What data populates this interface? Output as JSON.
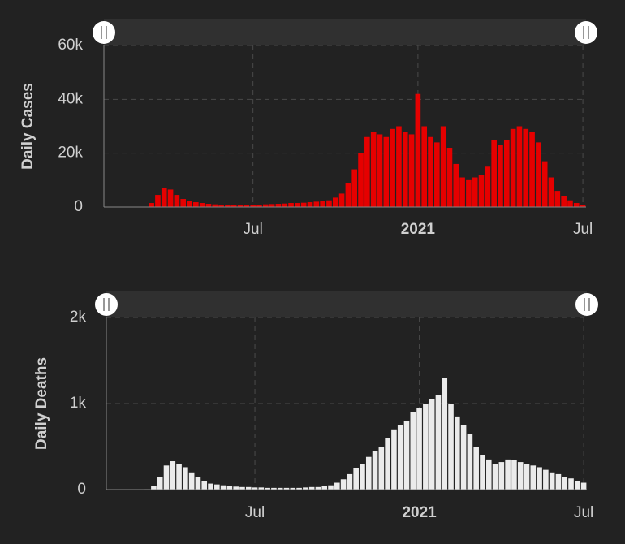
{
  "chart_data": [
    {
      "type": "bar",
      "ylabel": "Daily Cases",
      "color": "#e60000",
      "categories": [
        null,
        null,
        null,
        null,
        null,
        null,
        null,
        null,
        null,
        null,
        null,
        null,
        null,
        null,
        null,
        null,
        null,
        null,
        null,
        null,
        null,
        null,
        null,
        "Jul",
        null,
        null,
        null,
        null,
        null,
        null,
        null,
        null,
        null,
        null,
        null,
        null,
        null,
        null,
        null,
        null,
        null,
        null,
        null,
        null,
        null,
        null,
        null,
        null,
        null,
        "2021",
        null,
        null,
        null,
        null,
        null,
        null,
        null,
        null,
        null,
        null,
        null,
        null,
        null,
        null,
        null,
        null,
        null,
        null,
        null,
        null,
        null,
        null,
        null,
        null,
        null,
        "Jul"
      ],
      "values": [
        0,
        0,
        0,
        0,
        0,
        50,
        100,
        1500,
        4500,
        7000,
        6500,
        4500,
        3000,
        2200,
        1800,
        1500,
        1200,
        1000,
        900,
        800,
        700,
        800,
        800,
        900,
        900,
        1000,
        1100,
        1200,
        1300,
        1500,
        1500,
        1600,
        1800,
        2000,
        2200,
        2500,
        3500,
        5000,
        9000,
        14000,
        20000,
        26000,
        28000,
        27000,
        26000,
        29000,
        30000,
        28000,
        27000,
        42000,
        30000,
        26000,
        24000,
        30000,
        22000,
        16000,
        11000,
        10000,
        11000,
        12000,
        15000,
        25000,
        23000,
        25000,
        29000,
        30000,
        29000,
        28000,
        24000,
        17000,
        11000,
        6000,
        4000,
        2500,
        1500,
        800
      ],
      "ylim": [
        0,
        60000
      ],
      "yticks": [
        0,
        {
          "value": 20000,
          "label": "20k"
        },
        {
          "value": 40000,
          "label": "40k"
        },
        {
          "value": 60000,
          "label": "60k"
        }
      ],
      "grid": true
    },
    {
      "type": "bar",
      "ylabel": "Daily Deaths",
      "color": "#ebebeb",
      "categories": [
        null,
        null,
        null,
        null,
        null,
        null,
        null,
        null,
        null,
        null,
        null,
        null,
        null,
        null,
        null,
        null,
        null,
        null,
        null,
        null,
        null,
        null,
        null,
        "Jul",
        null,
        null,
        null,
        null,
        null,
        null,
        null,
        null,
        null,
        null,
        null,
        null,
        null,
        null,
        null,
        null,
        null,
        null,
        null,
        null,
        null,
        null,
        null,
        null,
        null,
        "2021",
        null,
        null,
        null,
        null,
        null,
        null,
        null,
        null,
        null,
        null,
        null,
        null,
        null,
        null,
        null,
        null,
        null,
        null,
        null,
        null,
        null,
        null,
        null,
        null,
        null,
        "Jul"
      ],
      "values": [
        0,
        0,
        0,
        0,
        0,
        0,
        5,
        40,
        150,
        280,
        330,
        300,
        260,
        200,
        150,
        100,
        70,
        60,
        50,
        40,
        35,
        30,
        30,
        25,
        25,
        20,
        20,
        20,
        20,
        20,
        20,
        25,
        30,
        30,
        40,
        50,
        80,
        120,
        180,
        250,
        300,
        380,
        450,
        500,
        600,
        700,
        750,
        800,
        900,
        950,
        1000,
        1050,
        1100,
        1300,
        1000,
        850,
        750,
        650,
        500,
        400,
        350,
        300,
        320,
        350,
        340,
        320,
        300,
        280,
        260,
        230,
        200,
        180,
        150,
        130,
        100,
        80
      ],
      "ylim": [
        0,
        2000
      ],
      "yticks": [
        0,
        {
          "value": 1000,
          "label": "1k"
        },
        {
          "value": 2000,
          "label": "2k"
        }
      ],
      "grid": true
    }
  ]
}
